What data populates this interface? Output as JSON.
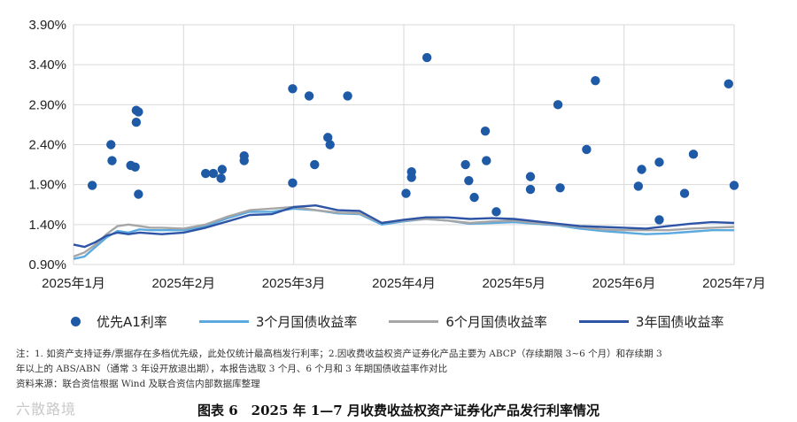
{
  "chart_data": {
    "type": "scatter",
    "y_ticks": [
      "0.90%",
      "1.40%",
      "1.90%",
      "2.40%",
      "2.90%",
      "3.40%",
      "3.90%"
    ],
    "ylim": [
      0.9,
      3.9
    ],
    "x_ticks": [
      "2025年1月",
      "2025年2月",
      "2025年3月",
      "2025年4月",
      "2025年5月",
      "2025年6月",
      "2025年7月"
    ],
    "xlim": [
      0,
      6
    ],
    "grid": true,
    "legend_position": "bottom",
    "series": [
      {
        "name": "优先A1利率",
        "kind": "scatter",
        "color": "#1f5aa6",
        "points": [
          [
            0.17,
            1.89
          ],
          [
            0.34,
            2.4
          ],
          [
            0.35,
            2.2
          ],
          [
            0.52,
            2.14
          ],
          [
            0.56,
            2.12
          ],
          [
            0.57,
            2.83
          ],
          [
            0.57,
            2.68
          ],
          [
            0.59,
            2.81
          ],
          [
            0.59,
            1.78
          ],
          [
            1.2,
            2.04
          ],
          [
            1.27,
            2.04
          ],
          [
            1.34,
            1.98
          ],
          [
            1.35,
            2.09
          ],
          [
            1.55,
            2.2
          ],
          [
            1.55,
            2.26
          ],
          [
            1.99,
            3.1
          ],
          [
            1.99,
            1.92
          ],
          [
            2.14,
            3.01
          ],
          [
            2.19,
            2.15
          ],
          [
            2.31,
            2.49
          ],
          [
            2.33,
            2.4
          ],
          [
            2.49,
            3.01
          ],
          [
            3.02,
            1.79
          ],
          [
            3.07,
            2.06
          ],
          [
            3.07,
            1.99
          ],
          [
            3.21,
            3.49
          ],
          [
            3.56,
            2.15
          ],
          [
            3.59,
            1.95
          ],
          [
            3.64,
            1.74
          ],
          [
            3.74,
            2.57
          ],
          [
            3.75,
            2.2
          ],
          [
            3.84,
            1.56
          ],
          [
            4.15,
            2.0
          ],
          [
            4.15,
            1.84
          ],
          [
            4.4,
            2.9
          ],
          [
            4.42,
            1.86
          ],
          [
            4.66,
            2.34
          ],
          [
            4.74,
            3.2
          ],
          [
            5.13,
            1.88
          ],
          [
            5.16,
            2.09
          ],
          [
            5.32,
            2.18
          ],
          [
            5.32,
            1.46
          ],
          [
            5.55,
            1.79
          ],
          [
            5.63,
            2.28
          ],
          [
            5.95,
            3.16
          ],
          [
            6.0,
            1.89
          ]
        ]
      },
      {
        "name": "3个月国债收益率",
        "kind": "line",
        "color": "#5aa9df",
        "points": [
          [
            0,
            0.97
          ],
          [
            0.1,
            1.0
          ],
          [
            0.2,
            1.12
          ],
          [
            0.3,
            1.24
          ],
          [
            0.4,
            1.32
          ],
          [
            0.5,
            1.3
          ],
          [
            0.6,
            1.34
          ],
          [
            0.7,
            1.33
          ],
          [
            0.8,
            1.33
          ],
          [
            1.0,
            1.33
          ],
          [
            1.2,
            1.38
          ],
          [
            1.4,
            1.48
          ],
          [
            1.6,
            1.56
          ],
          [
            1.8,
            1.56
          ],
          [
            2.0,
            1.6
          ],
          [
            2.2,
            1.58
          ],
          [
            2.4,
            1.54
          ],
          [
            2.6,
            1.53
          ],
          [
            2.8,
            1.4
          ],
          [
            3.0,
            1.44
          ],
          [
            3.2,
            1.47
          ],
          [
            3.4,
            1.45
          ],
          [
            3.6,
            1.41
          ],
          [
            3.8,
            1.42
          ],
          [
            4.0,
            1.43
          ],
          [
            4.2,
            1.41
          ],
          [
            4.4,
            1.39
          ],
          [
            4.6,
            1.35
          ],
          [
            4.8,
            1.32
          ],
          [
            5.0,
            1.3
          ],
          [
            5.2,
            1.28
          ],
          [
            5.4,
            1.29
          ],
          [
            5.6,
            1.31
          ],
          [
            5.8,
            1.33
          ],
          [
            6.0,
            1.33
          ]
        ]
      },
      {
        "name": "6个月国债收益率",
        "kind": "line",
        "color": "#a6a6a6",
        "points": [
          [
            0,
            1.0
          ],
          [
            0.1,
            1.05
          ],
          [
            0.2,
            1.15
          ],
          [
            0.3,
            1.28
          ],
          [
            0.4,
            1.38
          ],
          [
            0.5,
            1.4
          ],
          [
            0.6,
            1.38
          ],
          [
            0.7,
            1.36
          ],
          [
            0.8,
            1.36
          ],
          [
            1.0,
            1.35
          ],
          [
            1.2,
            1.4
          ],
          [
            1.4,
            1.5
          ],
          [
            1.6,
            1.58
          ],
          [
            1.8,
            1.6
          ],
          [
            2.0,
            1.62
          ],
          [
            2.2,
            1.58
          ],
          [
            2.4,
            1.55
          ],
          [
            2.6,
            1.54
          ],
          [
            2.8,
            1.42
          ],
          [
            3.0,
            1.45
          ],
          [
            3.2,
            1.47
          ],
          [
            3.4,
            1.45
          ],
          [
            3.6,
            1.42
          ],
          [
            3.8,
            1.44
          ],
          [
            4.0,
            1.45
          ],
          [
            4.2,
            1.42
          ],
          [
            4.4,
            1.4
          ],
          [
            4.6,
            1.37
          ],
          [
            4.8,
            1.34
          ],
          [
            5.0,
            1.33
          ],
          [
            5.2,
            1.33
          ],
          [
            5.4,
            1.33
          ],
          [
            5.6,
            1.35
          ],
          [
            5.8,
            1.36
          ],
          [
            6.0,
            1.37
          ]
        ]
      },
      {
        "name": "3年国债收益率",
        "kind": "line",
        "color": "#2e55a5",
        "points": [
          [
            0,
            1.15
          ],
          [
            0.1,
            1.12
          ],
          [
            0.2,
            1.18
          ],
          [
            0.3,
            1.26
          ],
          [
            0.4,
            1.3
          ],
          [
            0.5,
            1.28
          ],
          [
            0.6,
            1.3
          ],
          [
            0.7,
            1.29
          ],
          [
            0.8,
            1.28
          ],
          [
            1.0,
            1.3
          ],
          [
            1.2,
            1.36
          ],
          [
            1.4,
            1.44
          ],
          [
            1.6,
            1.52
          ],
          [
            1.8,
            1.53
          ],
          [
            2.0,
            1.62
          ],
          [
            2.2,
            1.64
          ],
          [
            2.4,
            1.58
          ],
          [
            2.6,
            1.57
          ],
          [
            2.8,
            1.42
          ],
          [
            3.0,
            1.46
          ],
          [
            3.2,
            1.49
          ],
          [
            3.4,
            1.49
          ],
          [
            3.6,
            1.47
          ],
          [
            3.8,
            1.48
          ],
          [
            4.0,
            1.47
          ],
          [
            4.2,
            1.44
          ],
          [
            4.4,
            1.41
          ],
          [
            4.6,
            1.38
          ],
          [
            4.8,
            1.37
          ],
          [
            5.0,
            1.36
          ],
          [
            5.2,
            1.35
          ],
          [
            5.4,
            1.38
          ],
          [
            5.6,
            1.41
          ],
          [
            5.8,
            1.43
          ],
          [
            6.0,
            1.42
          ]
        ]
      }
    ]
  },
  "notes": {
    "line1": "注：1. 如资产支持证券/票据存在多档优先级，此处仅统计最高档发行利率；2.因收费收益权资产证券化产品主要为 ABCP（存续期限 3~6 个月）和存续期 3",
    "line2": "年以上的 ABS/ABN（通常 3 年设开放退出期），本报告选取 3 个月、6 个月和 3 年期国债收益率作对比",
    "source": "资料来源：联合资信根据 Wind 及联合资信内部数据库整理"
  },
  "caption": "图表 6　2025 年 1—7 月收费收益权资产证券化产品发行利率情况",
  "watermark": "六散路境"
}
